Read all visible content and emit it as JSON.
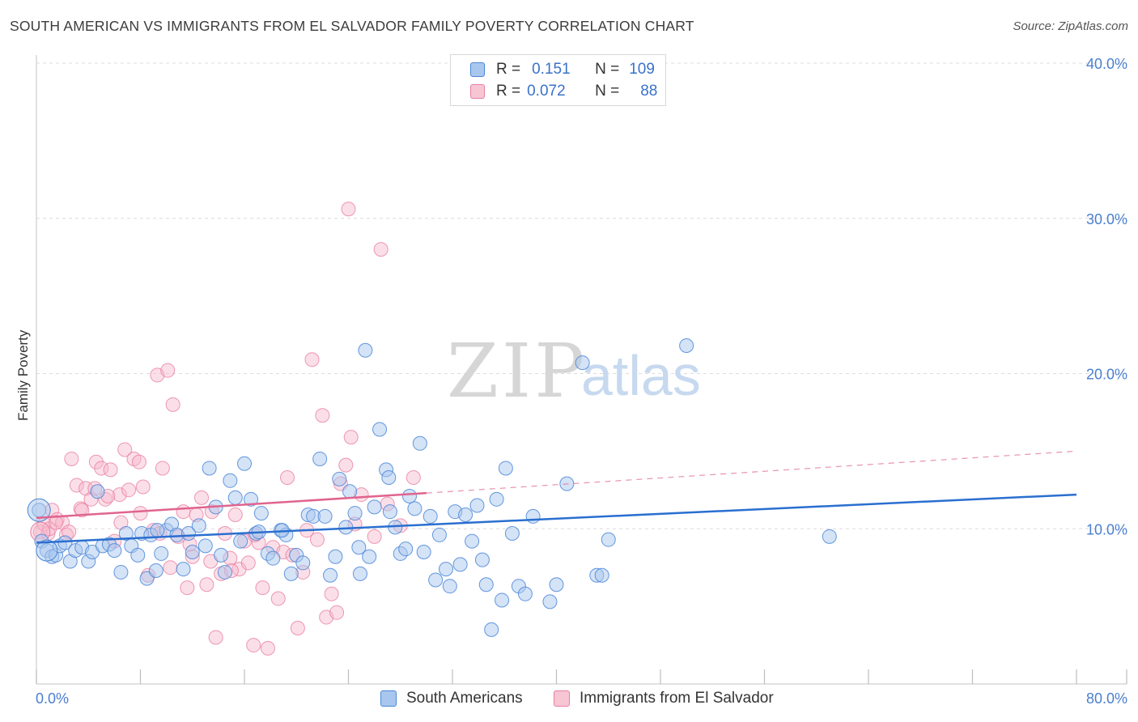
{
  "title": "SOUTH AMERICAN VS IMMIGRANTS FROM EL SALVADOR FAMILY POVERTY CORRELATION CHART",
  "source": "Source: ZipAtlas.com",
  "watermark": {
    "zip": "ZIP",
    "atlas": "atlas"
  },
  "legend": {
    "r_label": "R =",
    "n_label": "N =",
    "rows": [
      {
        "r": "0.151",
        "n": "109"
      },
      {
        "r": "0.072",
        "n": "88"
      }
    ]
  },
  "colors": {
    "blue_fill": "#a9c7ee",
    "blue_stroke": "#4a86d8",
    "blue_line": "#2a6fd0",
    "pink_fill": "#f6b8cb",
    "pink_stroke": "#e87fa0",
    "pink_line": "#e0648e",
    "grid": "#dcdcdc",
    "axis_text": "#4a7fd1"
  },
  "chart_data": {
    "type": "scatter",
    "title": "SOUTH AMERICAN VS IMMIGRANTS FROM EL SALVADOR FAMILY POVERTY CORRELATION CHART",
    "xlabel": "",
    "ylabel": "Family Poverty",
    "xlim": [
      0,
      80
    ],
    "ylim": [
      0,
      40
    ],
    "x_tick_labels": [
      "0.0%",
      "80.0%"
    ],
    "y_ticks": [
      10,
      20,
      30,
      40
    ],
    "y_tick_labels": [
      "10.0%",
      "20.0%",
      "30.0%",
      "40.0%"
    ],
    "grid": true,
    "legend_position": "bottom",
    "series": [
      {
        "name": "South Americans",
        "color": "blue",
        "trend": {
          "x": [
            0,
            80
          ],
          "y": [
            9.1,
            12.2
          ]
        },
        "points": [
          [
            0.2,
            11.2
          ],
          [
            0.4,
            9.2
          ],
          [
            0.8,
            8.6
          ],
          [
            1.2,
            8.2
          ],
          [
            1.5,
            8.3
          ],
          [
            1.8,
            8.9
          ],
          [
            2.2,
            9.1
          ],
          [
            2.6,
            7.9
          ],
          [
            3.0,
            8.6
          ],
          [
            3.5,
            8.8
          ],
          [
            4.0,
            7.9
          ],
          [
            4.3,
            8.5
          ],
          [
            4.7,
            12.4
          ],
          [
            5.1,
            8.9
          ],
          [
            5.6,
            9.0
          ],
          [
            6.0,
            8.6
          ],
          [
            6.5,
            7.2
          ],
          [
            6.9,
            9.7
          ],
          [
            7.3,
            8.9
          ],
          [
            7.8,
            8.3
          ],
          [
            8.1,
            9.7
          ],
          [
            8.5,
            6.8
          ],
          [
            8.8,
            9.6
          ],
          [
            9.2,
            7.3
          ],
          [
            9.6,
            8.4
          ],
          [
            10.0,
            9.9
          ],
          [
            10.4,
            10.3
          ],
          [
            10.8,
            9.6
          ],
          [
            11.3,
            7.4
          ],
          [
            11.7,
            9.7
          ],
          [
            12.0,
            8.5
          ],
          [
            12.5,
            10.2
          ],
          [
            13.0,
            8.9
          ],
          [
            13.3,
            13.9
          ],
          [
            13.8,
            11.4
          ],
          [
            14.2,
            8.3
          ],
          [
            14.5,
            7.2
          ],
          [
            14.9,
            13.1
          ],
          [
            15.3,
            12.0
          ],
          [
            15.7,
            9.2
          ],
          [
            16.0,
            14.2
          ],
          [
            16.5,
            11.9
          ],
          [
            16.9,
            9.7
          ],
          [
            17.3,
            11.0
          ],
          [
            17.8,
            8.4
          ],
          [
            18.2,
            8.1
          ],
          [
            18.8,
            9.9
          ],
          [
            19.2,
            9.6
          ],
          [
            19.6,
            7.1
          ],
          [
            20.0,
            8.3
          ],
          [
            20.5,
            7.8
          ],
          [
            20.9,
            10.9
          ],
          [
            21.3,
            10.8
          ],
          [
            21.8,
            14.5
          ],
          [
            22.2,
            10.8
          ],
          [
            22.6,
            7.0
          ],
          [
            23.0,
            8.2
          ],
          [
            23.3,
            13.2
          ],
          [
            23.8,
            10.1
          ],
          [
            24.1,
            12.4
          ],
          [
            24.5,
            11.0
          ],
          [
            24.9,
            7.1
          ],
          [
            25.3,
            21.5
          ],
          [
            25.6,
            8.2
          ],
          [
            26.0,
            11.4
          ],
          [
            26.4,
            16.4
          ],
          [
            26.9,
            13.8
          ],
          [
            27.2,
            11.1
          ],
          [
            27.6,
            10.1
          ],
          [
            28.0,
            8.4
          ],
          [
            28.4,
            8.7
          ],
          [
            28.7,
            12.1
          ],
          [
            29.1,
            11.3
          ],
          [
            29.5,
            15.5
          ],
          [
            29.8,
            8.5
          ],
          [
            30.3,
            10.8
          ],
          [
            30.7,
            6.7
          ],
          [
            31.0,
            9.6
          ],
          [
            31.5,
            7.4
          ],
          [
            31.8,
            6.3
          ],
          [
            32.2,
            11.1
          ],
          [
            32.6,
            7.7
          ],
          [
            33.0,
            10.9
          ],
          [
            33.5,
            9.2
          ],
          [
            33.9,
            11.5
          ],
          [
            34.3,
            8.0
          ],
          [
            34.6,
            6.4
          ],
          [
            35.0,
            3.5
          ],
          [
            35.4,
            11.9
          ],
          [
            35.8,
            5.4
          ],
          [
            36.1,
            13.9
          ],
          [
            36.6,
            9.7
          ],
          [
            37.1,
            6.3
          ],
          [
            37.6,
            5.8
          ],
          [
            38.2,
            10.8
          ],
          [
            39.5,
            5.3
          ],
          [
            40.0,
            6.4
          ],
          [
            40.8,
            12.9
          ],
          [
            42.0,
            20.7
          ],
          [
            43.1,
            7.0
          ],
          [
            43.5,
            7.0
          ],
          [
            44.0,
            9.3
          ],
          [
            50.0,
            21.8
          ],
          [
            61.0,
            9.5
          ],
          [
            27.1,
            13.3
          ],
          [
            24.8,
            8.8
          ],
          [
            17.1,
            9.8
          ],
          [
            18.9,
            9.9
          ],
          [
            9.3,
            9.9
          ]
        ]
      },
      {
        "name": "Immigrants from El Salvador",
        "color": "pink",
        "trend": {
          "x": [
            0,
            30
          ],
          "y": [
            10.7,
            12.3
          ]
        },
        "trend_dashed": {
          "x": [
            30,
            80
          ],
          "y": [
            12.3,
            15.0
          ]
        },
        "points": [
          [
            0.3,
            9.8
          ],
          [
            0.6,
            10.3
          ],
          [
            0.9,
            9.7
          ],
          [
            1.2,
            11.2
          ],
          [
            1.6,
            10.6
          ],
          [
            2.0,
            10.4
          ],
          [
            2.3,
            9.6
          ],
          [
            2.7,
            14.5
          ],
          [
            3.1,
            12.8
          ],
          [
            3.4,
            11.3
          ],
          [
            3.8,
            12.6
          ],
          [
            4.2,
            11.9
          ],
          [
            4.6,
            14.3
          ],
          [
            5.0,
            13.9
          ],
          [
            5.3,
            11.9
          ],
          [
            5.7,
            13.8
          ],
          [
            6.0,
            9.2
          ],
          [
            6.4,
            12.2
          ],
          [
            6.8,
            15.1
          ],
          [
            7.1,
            12.5
          ],
          [
            7.5,
            14.5
          ],
          [
            7.9,
            14.3
          ],
          [
            8.2,
            12.7
          ],
          [
            8.6,
            7.0
          ],
          [
            9.0,
            9.9
          ],
          [
            9.3,
            19.9
          ],
          [
            9.7,
            13.9
          ],
          [
            10.1,
            20.2
          ],
          [
            10.5,
            18.0
          ],
          [
            10.9,
            9.5
          ],
          [
            11.3,
            11.1
          ],
          [
            11.6,
            6.2
          ],
          [
            12.0,
            8.2
          ],
          [
            12.3,
            10.9
          ],
          [
            12.7,
            12.0
          ],
          [
            13.1,
            6.4
          ],
          [
            13.4,
            7.9
          ],
          [
            13.8,
            3.0
          ],
          [
            14.2,
            7.1
          ],
          [
            14.5,
            9.7
          ],
          [
            14.9,
            8.1
          ],
          [
            15.3,
            10.9
          ],
          [
            15.6,
            7.4
          ],
          [
            16.0,
            9.2
          ],
          [
            16.3,
            7.8
          ],
          [
            16.7,
            2.5
          ],
          [
            17.1,
            9.1
          ],
          [
            17.4,
            6.2
          ],
          [
            17.8,
            2.3
          ],
          [
            18.2,
            8.8
          ],
          [
            18.6,
            5.5
          ],
          [
            19.0,
            8.5
          ],
          [
            19.3,
            13.3
          ],
          [
            19.7,
            8.3
          ],
          [
            20.1,
            3.6
          ],
          [
            20.5,
            7.2
          ],
          [
            20.8,
            9.9
          ],
          [
            21.2,
            20.9
          ],
          [
            21.6,
            9.3
          ],
          [
            22.0,
            17.3
          ],
          [
            22.3,
            4.3
          ],
          [
            22.7,
            5.8
          ],
          [
            23.1,
            4.6
          ],
          [
            23.4,
            12.9
          ],
          [
            23.8,
            14.1
          ],
          [
            24.2,
            15.9
          ],
          [
            24.5,
            10.3
          ],
          [
            25.0,
            12.2
          ],
          [
            26.0,
            9.5
          ],
          [
            27.0,
            11.6
          ],
          [
            28.0,
            10.2
          ],
          [
            29.0,
            13.3
          ],
          [
            24.0,
            30.6
          ],
          [
            26.5,
            28.0
          ],
          [
            1.0,
            10.0
          ],
          [
            1.5,
            10.4
          ],
          [
            2.5,
            9.8
          ],
          [
            3.5,
            11.2
          ],
          [
            4.5,
            12.6
          ],
          [
            5.5,
            12.1
          ],
          [
            6.5,
            10.4
          ],
          [
            8.0,
            11.0
          ],
          [
            9.5,
            9.7
          ],
          [
            10.3,
            7.5
          ],
          [
            11.8,
            9.0
          ],
          [
            13.5,
            11.1
          ],
          [
            15.0,
            7.3
          ],
          [
            16.8,
            9.6
          ]
        ]
      }
    ]
  },
  "bottom_legend": [
    "South Americans",
    "Immigrants from El Salvador"
  ]
}
